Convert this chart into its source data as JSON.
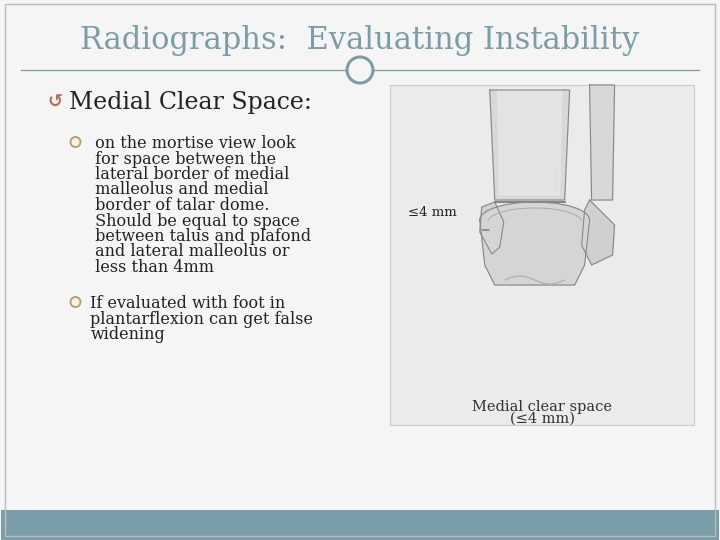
{
  "title": "Radiographs:  Evaluating Instability",
  "title_color": "#7a9daa",
  "title_fontsize": 22,
  "background_color": "#f5f5f5",
  "footer_color": "#7a9daa",
  "header_line_color": "#7a9daa",
  "bullet_heading_text": "Medial Clear Space:",
  "bullet_heading_color": "#222222",
  "bullet_heading_fontsize": 17,
  "bullet_icon_color": "#b87050",
  "sub_bullet_color": "#b8a060",
  "sub_bullet_text_color": "#222222",
  "sub_bullet_fontsize": 11.5,
  "sub_bullets": [
    " on the mortise view look\n for space between the\n lateral border of medial\n malleolus and medial\n border of talar dome.\n Should be equal to space\n between talus and plafond\n and lateral malleolus or\n less than 4mm",
    "If evaluated with foot in\nplantarflexion can get false\nwidening"
  ],
  "circle_color": "#7a9daa",
  "image_box_color": "#ebebeb",
  "image_caption_line1": "Medial clear space",
  "image_caption_line2": "(≤4 mm)",
  "image_annotation": "≤4 mm"
}
